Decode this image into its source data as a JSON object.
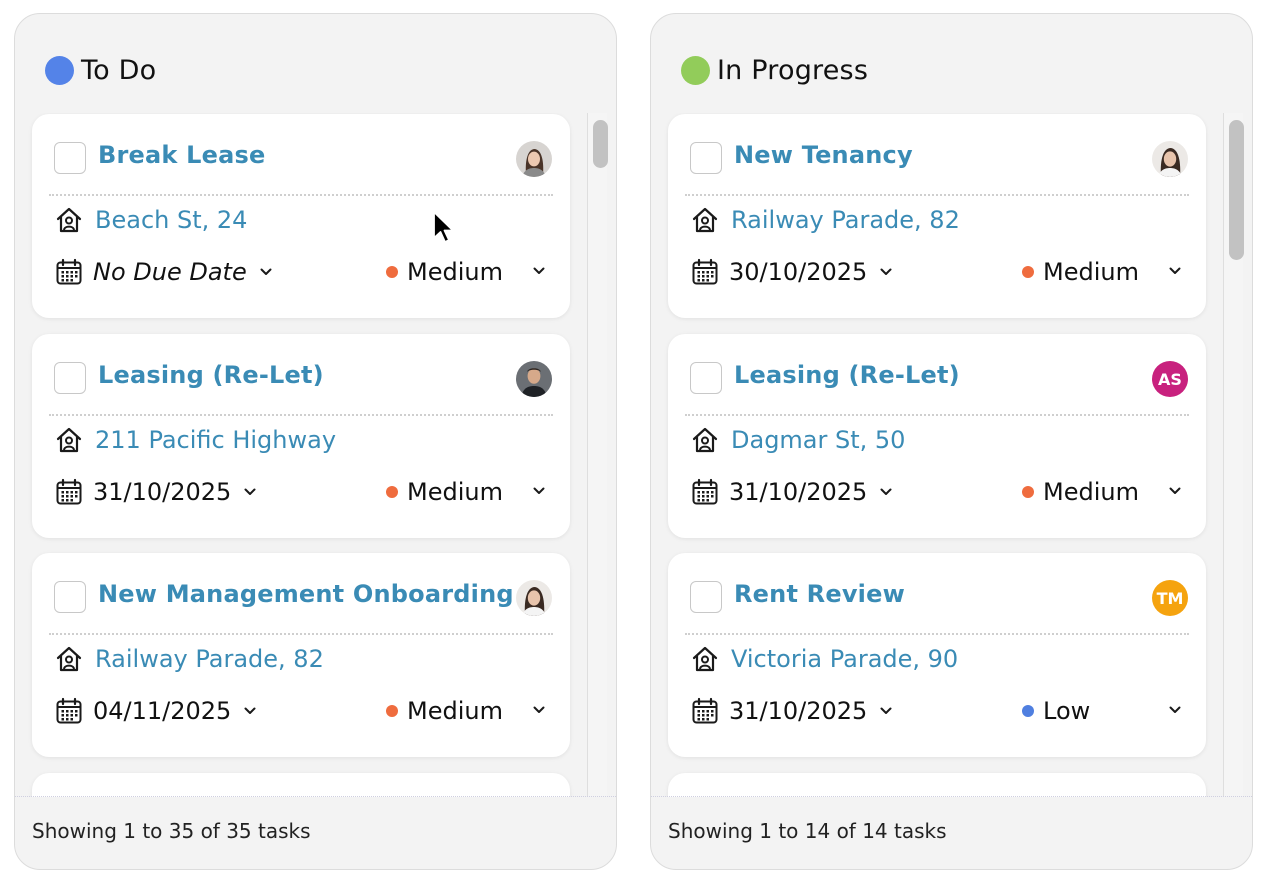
{
  "columns": [
    {
      "title": "To Do",
      "dot_color": "#5483e8",
      "footer": "Showing 1 to 35 of 35 tasks",
      "cards": [
        {
          "title": "Break Lease",
          "address": "Beach St, 24",
          "due_date": "No Due Date",
          "priority": "Medium",
          "priority_color": "#ef6c3e",
          "avatar": "photo"
        },
        {
          "title": "Leasing (Re-Let)",
          "address": "211 Pacific Highway",
          "due_date": "31/10/2025",
          "priority": "Medium",
          "priority_color": "#ef6c3e",
          "avatar": "photo"
        },
        {
          "title": "New Management Onboarding",
          "address": "Railway Parade, 82",
          "due_date": "04/11/2025",
          "priority": "Medium",
          "priority_color": "#ef6c3e",
          "avatar": "photo"
        }
      ]
    },
    {
      "title": "In Progress",
      "dot_color": "#92cc5a",
      "footer": "Showing 1 to 14 of 14 tasks",
      "cards": [
        {
          "title": "New Tenancy",
          "address": "Railway Parade, 82",
          "due_date": "30/10/2025",
          "priority": "Medium",
          "priority_color": "#ef6c3e",
          "avatar": "photo"
        },
        {
          "title": "Leasing (Re-Let)",
          "address": "Dagmar St, 50",
          "due_date": "31/10/2025",
          "priority": "Medium",
          "priority_color": "#ef6c3e",
          "avatar": "AS",
          "avatar_color": "#c8217e"
        },
        {
          "title": "Rent Review",
          "address": "Victoria Parade, 90",
          "due_date": "31/10/2025",
          "priority": "Low",
          "priority_color": "#4f7fe0",
          "avatar": "TM",
          "avatar_color": "#f5a30f"
        }
      ]
    }
  ]
}
